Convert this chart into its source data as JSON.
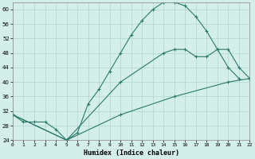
{
  "xlabel": "Humidex (Indice chaleur)",
  "xlim": [
    0,
    22
  ],
  "ylim": [
    24,
    62
  ],
  "yticks": [
    24,
    28,
    32,
    36,
    40,
    44,
    48,
    52,
    56,
    60
  ],
  "xticks": [
    0,
    1,
    2,
    3,
    4,
    5,
    6,
    7,
    8,
    9,
    10,
    11,
    12,
    13,
    14,
    15,
    16,
    17,
    18,
    19,
    20,
    21,
    22
  ],
  "line_color": "#2a7a6a",
  "bg_color": "#d4eeea",
  "grid_color": "#aed8d0",
  "line1_x": [
    0,
    1,
    2,
    3,
    4,
    5,
    6,
    7,
    8,
    9,
    10,
    11,
    12,
    13,
    14,
    15,
    16,
    17,
    18,
    19,
    20,
    21
  ],
  "line1_y": [
    31,
    29,
    29,
    29,
    27,
    24,
    26,
    34,
    38,
    43,
    48,
    53,
    57,
    60,
    62,
    62,
    61,
    58,
    54,
    49,
    44,
    41
  ],
  "line2_x": [
    0,
    5,
    10,
    14,
    15,
    16,
    17,
    18,
    19,
    20,
    21,
    22
  ],
  "line2_y": [
    31,
    24,
    40,
    48,
    49,
    49,
    47,
    47,
    49,
    49,
    44,
    41
  ],
  "line3_x": [
    0,
    5,
    10,
    15,
    20,
    22
  ],
  "line3_y": [
    31,
    24,
    31,
    36,
    40,
    41
  ]
}
